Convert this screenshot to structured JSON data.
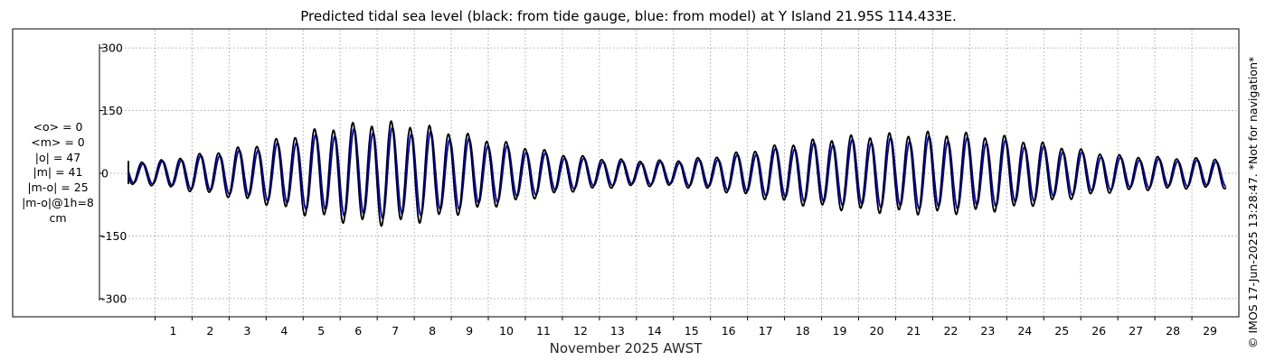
{
  "chart_data": {
    "type": "line",
    "title": "Predicted tidal sea level (black: from tide gauge, blue: from model) at Y Island 21.95S 114.433E.",
    "xlabel": "November 2025 AWST",
    "ylabel": "",
    "x_ticks": [
      "1",
      "2",
      "3",
      "4",
      "5",
      "6",
      "7",
      "8",
      "9",
      "10",
      "11",
      "12",
      "13",
      "14",
      "15",
      "16",
      "17",
      "18",
      "19",
      "20",
      "21",
      "22",
      "23",
      "24",
      "25",
      "26",
      "27",
      "28",
      "29"
    ],
    "y_ticks": [
      "300",
      "150",
      "0",
      "-150",
      "-300"
    ],
    "ylim": [
      -320,
      320
    ],
    "xlim_days": [
      -0.6,
      29.95
    ],
    "grid": true,
    "series": [
      {
        "name": "from tide gauge",
        "color": "#000000",
        "envelope_days": [
          -0.6,
          0,
          1,
          2,
          3,
          4,
          5,
          6,
          7,
          8,
          9,
          10,
          11,
          12,
          13,
          14,
          15,
          16,
          17,
          18,
          19,
          20,
          21,
          22,
          23,
          24,
          25,
          26,
          27,
          28,
          29,
          29.95
        ],
        "envelope_amplitude_cm": [
          12,
          28,
          28,
          42,
          55,
          72,
          95,
          112,
          120,
          115,
          98,
          80,
          62,
          45,
          35,
          30,
          30,
          38,
          52,
          68,
          80,
          88,
          92,
          95,
          92,
          85,
          70,
          55,
          42,
          38,
          35,
          35
        ]
      },
      {
        "name": "from model",
        "color": "#0000cc",
        "envelope_days": [
          -0.6,
          0,
          1,
          2,
          3,
          4,
          5,
          6,
          7,
          8,
          9,
          10,
          11,
          12,
          13,
          14,
          15,
          16,
          17,
          18,
          19,
          20,
          21,
          22,
          23,
          24,
          25,
          26,
          27,
          28,
          29,
          29.95
        ],
        "envelope_amplitude_cm": [
          10,
          24,
          25,
          37,
          48,
          62,
          82,
          97,
          104,
          100,
          86,
          70,
          54,
          39,
          30,
          26,
          26,
          33,
          45,
          59,
          70,
          77,
          80,
          83,
          80,
          74,
          61,
          48,
          36,
          33,
          30,
          30
        ]
      }
    ],
    "tidal_cycle_days": 0.5175
  },
  "stats": {
    "mean_obs": "<o> = 0",
    "mean_model": "<m> = 0",
    "abs_obs": "|o| = 47",
    "abs_model": "|m| = 41",
    "abs_diff": "|m-o| = 25",
    "abs_diff_1h": "|m-o|@1h=8",
    "unit": "cm"
  },
  "credit": "© IMOS 17-Jun-2025 13:28:47. *Not for navigation*",
  "colors": {
    "grid": "#aaaaaa",
    "axis": "#000000",
    "background": "#ffffff"
  }
}
